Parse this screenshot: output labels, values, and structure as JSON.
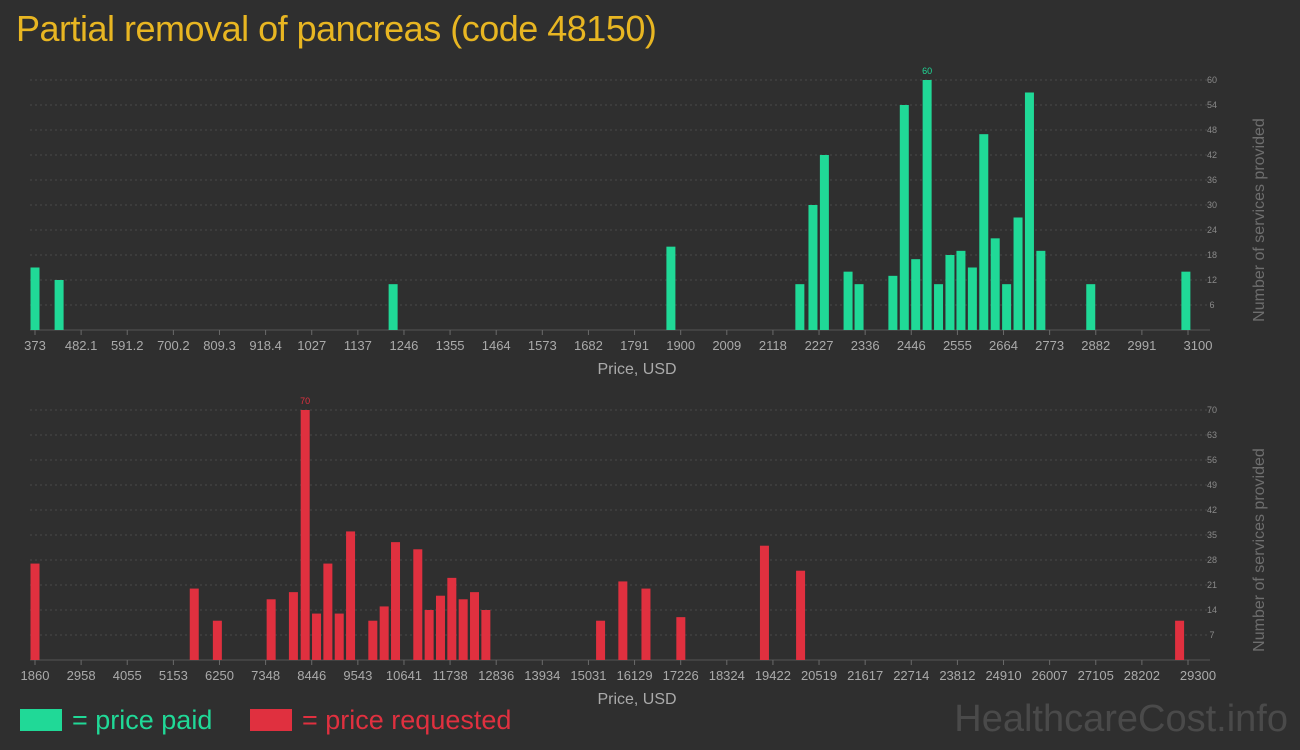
{
  "title": "Partial removal of pancreas (code 48150)",
  "colors": {
    "paid": "#20d997",
    "requested": "#e0303f",
    "title": "#e8b622"
  },
  "legend": {
    "paid": "= price paid",
    "requested": "= price requested"
  },
  "watermark": "HealthcareCost.info",
  "chart_data": [
    {
      "type": "bar",
      "series_role": "paid",
      "xlabel": "Price, USD",
      "ylabel": "Number of services provided",
      "x_ticks": [
        "373",
        "482.1",
        "591.2",
        "700.2",
        "809.3",
        "918.4",
        "1027",
        "1137",
        "1246",
        "1355",
        "1464",
        "1573",
        "1682",
        "1791",
        "1900",
        "2009",
        "2118",
        "2227",
        "2336",
        "2446",
        "2555",
        "2664",
        "2773",
        "2882",
        "2991",
        "3100"
      ],
      "xlim": [
        373,
        3100
      ],
      "y_ticks": [
        6,
        12,
        18,
        24,
        30,
        36,
        42,
        48,
        54,
        60
      ],
      "ylim": [
        0,
        60
      ],
      "peak_label": "60",
      "bars": [
        {
          "x": 373,
          "y": 15
        },
        {
          "x": 430,
          "y": 12
        },
        {
          "x": 1220,
          "y": 11
        },
        {
          "x": 1877,
          "y": 20
        },
        {
          "x": 2182,
          "y": 11
        },
        {
          "x": 2213,
          "y": 30
        },
        {
          "x": 2240,
          "y": 42
        },
        {
          "x": 2296,
          "y": 14
        },
        {
          "x": 2322,
          "y": 11
        },
        {
          "x": 2402,
          "y": 13
        },
        {
          "x": 2429,
          "y": 54
        },
        {
          "x": 2456,
          "y": 17
        },
        {
          "x": 2483,
          "y": 60
        },
        {
          "x": 2510,
          "y": 11
        },
        {
          "x": 2537,
          "y": 18
        },
        {
          "x": 2563,
          "y": 19
        },
        {
          "x": 2590,
          "y": 15
        },
        {
          "x": 2617,
          "y": 47
        },
        {
          "x": 2644,
          "y": 22
        },
        {
          "x": 2671,
          "y": 11
        },
        {
          "x": 2698,
          "y": 27
        },
        {
          "x": 2725,
          "y": 57
        },
        {
          "x": 2752,
          "y": 19
        },
        {
          "x": 2870,
          "y": 11
        },
        {
          "x": 3095,
          "y": 14
        }
      ]
    },
    {
      "type": "bar",
      "series_role": "requested",
      "xlabel": "Price, USD",
      "ylabel": "Number of services provided",
      "x_ticks": [
        "1860",
        "2958",
        "4055",
        "5153",
        "6250",
        "7348",
        "8446",
        "9543",
        "10641",
        "11738",
        "12836",
        "13934",
        "15031",
        "16129",
        "17226",
        "18324",
        "19422",
        "20519",
        "21617",
        "22714",
        "23812",
        "24910",
        "26007",
        "27105",
        "28202",
        "29300"
      ],
      "xlim": [
        1860,
        29300
      ],
      "y_ticks": [
        7,
        14,
        21,
        28,
        35,
        42,
        49,
        56,
        63,
        70
      ],
      "ylim": [
        0,
        70
      ],
      "peak_label": "70",
      "bars": [
        {
          "x": 1860,
          "y": 27
        },
        {
          "x": 5650,
          "y": 20
        },
        {
          "x": 6200,
          "y": 11
        },
        {
          "x": 7480,
          "y": 17
        },
        {
          "x": 8010,
          "y": 19
        },
        {
          "x": 8290,
          "y": 70
        },
        {
          "x": 8560,
          "y": 13
        },
        {
          "x": 8830,
          "y": 27
        },
        {
          "x": 9100,
          "y": 13
        },
        {
          "x": 9370,
          "y": 36
        },
        {
          "x": 9900,
          "y": 11
        },
        {
          "x": 10170,
          "y": 15
        },
        {
          "x": 10440,
          "y": 33
        },
        {
          "x": 10970,
          "y": 31
        },
        {
          "x": 11240,
          "y": 14
        },
        {
          "x": 11510,
          "y": 18
        },
        {
          "x": 11780,
          "y": 23
        },
        {
          "x": 12050,
          "y": 17
        },
        {
          "x": 12320,
          "y": 19
        },
        {
          "x": 12590,
          "y": 14
        },
        {
          "x": 15320,
          "y": 11
        },
        {
          "x": 15850,
          "y": 22
        },
        {
          "x": 16400,
          "y": 20
        },
        {
          "x": 17230,
          "y": 12
        },
        {
          "x": 19220,
          "y": 32
        },
        {
          "x": 20080,
          "y": 25
        },
        {
          "x": 29100,
          "y": 11
        }
      ]
    }
  ]
}
